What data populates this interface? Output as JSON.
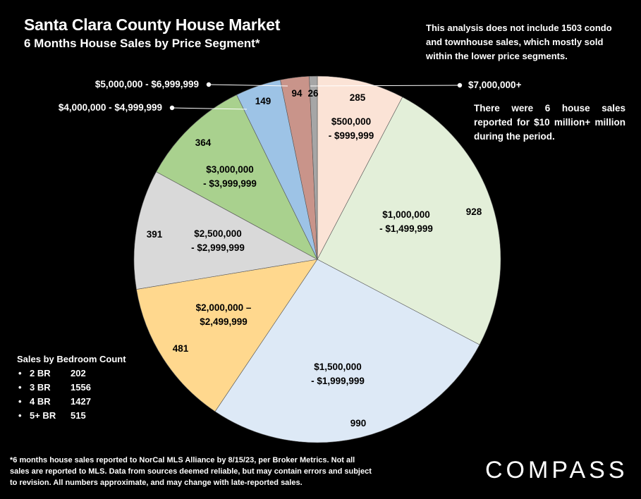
{
  "header": {
    "title": "Santa Clara County House Market",
    "subtitle": "6 Months House Sales by Price Segment*"
  },
  "notes": {
    "top": "This analysis does not include 1503 condo and townhouse sales, which mostly sold within the lower price segments.",
    "right": "There were 6 house sales reported for $10 million+ million during the period."
  },
  "bedroom": {
    "heading": "Sales by Bedroom Count",
    "items": [
      {
        "label": "2 BR",
        "value": "202"
      },
      {
        "label": "3 BR",
        "value": "1556"
      },
      {
        "label": "4 BR",
        "value": "1427"
      },
      {
        "label": "5+ BR",
        "value": "515"
      }
    ]
  },
  "footnote": "*6 months house sales reported to NorCal MLS Alliance by 8/15/23, per Broker Metrics. Not all sales are reported to MLS. Data from sources deemed reliable, but may contain errors and subject to revision. All numbers approximate, and may change with late-reported sales.",
  "logo": "COMPASS",
  "chart_data": {
    "type": "pie",
    "title": "6 Months House Sales by Price Segment*",
    "start": "12 o'clock, clockwise",
    "slices": [
      {
        "category": "$500,000 - $999,999",
        "value": 285,
        "color": "#fbe3d6",
        "line1": "$500,000",
        "line2": "- $999,999"
      },
      {
        "category": "$1,000,000 - $1,499,999",
        "value": 928,
        "color": "#e3efd9",
        "line1": "$1,000,000",
        "line2": "- $1,499,999"
      },
      {
        "category": "$1,500,000 - $1,999,999",
        "value": 990,
        "color": "#dde9f6",
        "line1": "$1,500,000",
        "line2": "- $1,999,999"
      },
      {
        "category": "$2,000,000 – $2,499,999",
        "value": 481,
        "color": "#ffd88e",
        "line1": "$2,000,000 –",
        "line2": "$2,499,999"
      },
      {
        "category": "$2,500,000 - $2,999,999",
        "value": 391,
        "color": "#d9d9d9",
        "line1": "$2,500,000",
        "line2": "- $2,999,999"
      },
      {
        "category": "$3,000,000 - $3,999,999",
        "value": 364,
        "color": "#a9d18e",
        "line1": "$3,000,000",
        "line2": "- $3,999,999"
      },
      {
        "category": "$4,000,000 - $4,999,999",
        "value": 149,
        "color": "#9dc3e6",
        "line1": "$4,000,000 - $4,999,999",
        "line2": ""
      },
      {
        "category": "$5,000,000 - $6,999,999",
        "value": 94,
        "color": "#c9948a",
        "line1": "$5,000,000 - $6,999,999",
        "line2": ""
      },
      {
        "category": "$7,000,000+",
        "value": 26,
        "color": "#a6a6a6",
        "line1": "$7,000,000+",
        "line2": ""
      }
    ]
  }
}
